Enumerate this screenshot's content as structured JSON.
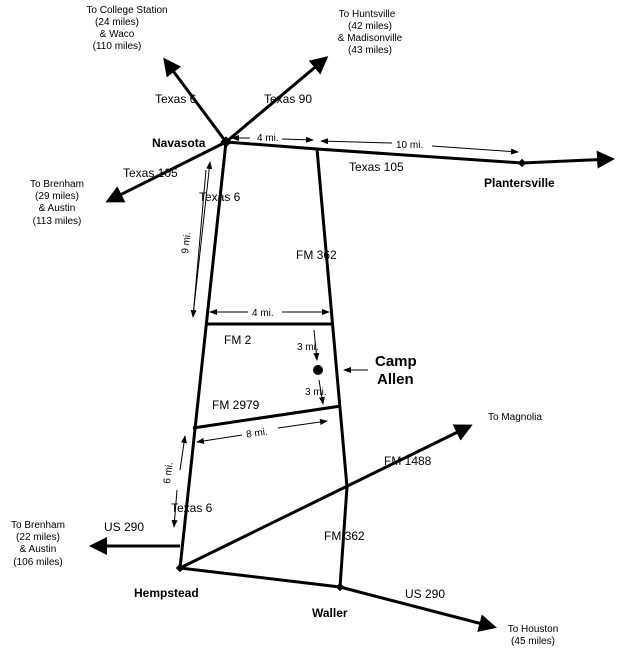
{
  "towns": {
    "navasota": "Navasota",
    "plantersville": "Plantersville",
    "hempstead": "Hempstead",
    "waller": "Waller",
    "camp_allen": [
      "Camp",
      "Allen"
    ]
  },
  "roads": {
    "tx6_n": "Texas 6",
    "tx90": "Texas 90",
    "tx105_w": "Texas 105",
    "tx105_e": "Texas 105",
    "tx6_a": "Texas 6",
    "fm362_a": "FM 362",
    "fm2": "FM 2",
    "fm2979": "FM 2979",
    "fm1488": "FM 1488",
    "tx6_b": "Texas 6",
    "us290_w": "US 290",
    "fm362_b": "FM 362",
    "us290_e": "US 290"
  },
  "destinations": {
    "college_station": [
      "To College Station",
      "(24 miles)",
      "& Waco",
      "(110 miles)"
    ],
    "huntsville": [
      "To Huntsville",
      "(42 miles)",
      "& Madisonville",
      "(43 miles)"
    ],
    "brenham_n": [
      "To Brenham",
      "(29 miles)",
      "& Austin",
      "(113 miles)"
    ],
    "magnolia": [
      "To Magnolia"
    ],
    "brenham_s": [
      "To Brenham",
      "(22 miles)",
      "& Austin",
      "(106 miles)"
    ],
    "houston": [
      "To Houston",
      "(45 miles)"
    ]
  },
  "distances": {
    "nav_fm362": "4 mi.",
    "fm362_planters": "10 mi.",
    "nav_fm2": "9 mi.",
    "fm2_width": "4 mi.",
    "fm2_camp": "3 mi.",
    "camp_fm2979": "3 mi.",
    "fm2979_width": "8 mi.",
    "fm2979_hemp": "6 mi."
  }
}
